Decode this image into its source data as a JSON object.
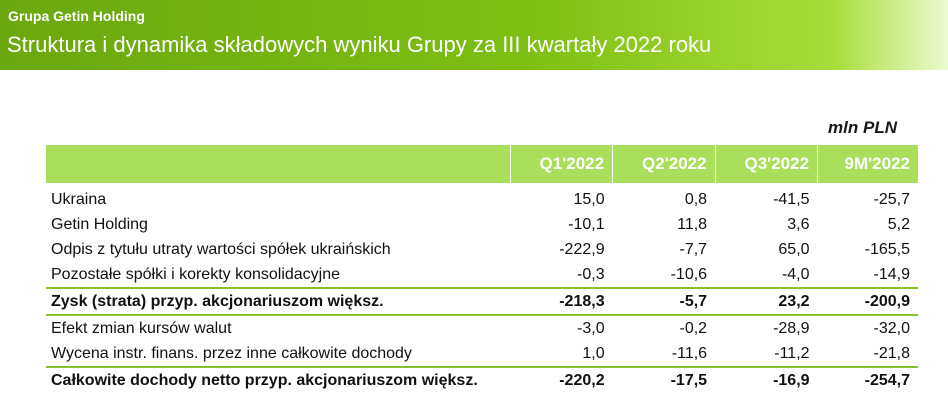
{
  "header": {
    "company": "Grupa Getin Holding",
    "title": "Struktura i dynamika składowych wyniku Grupy za III kwartały 2022 roku"
  },
  "unit": "mln PLN",
  "table": {
    "columns": [
      "Q1'2022",
      "Q2'2022",
      "Q3'2022",
      "9M'2022"
    ],
    "rows": [
      {
        "label": "Ukraina",
        "values": [
          "15,0",
          "0,8",
          "-41,5",
          "-25,7"
        ]
      },
      {
        "label": "Getin Holding",
        "values": [
          "-10,1",
          "11,8",
          "3,6",
          "5,2"
        ]
      },
      {
        "label": "Odpis z tytułu utraty wartości spółek ukraińskich",
        "values": [
          "-222,9",
          "-7,7",
          "65,0",
          "-165,5"
        ]
      },
      {
        "label": "Pozostałe spółki i korekty konsolidacyjne",
        "values": [
          "-0,3",
          "-10,6",
          "-4,0",
          "-14,9"
        ]
      },
      {
        "label": "Zysk (strata) przyp. akcjonariuszom większ.",
        "values": [
          "-218,3",
          "-5,7",
          "23,2",
          "-200,9"
        ]
      },
      {
        "label": "Efekt zmian kursów walut",
        "values": [
          "-3,0",
          "-0,2",
          "-28,9",
          "-32,0"
        ]
      },
      {
        "label": "Wycena instr. finans. przez inne całkowite dochody",
        "values": [
          "1,0",
          "-11,6",
          "-11,2",
          "-21,8"
        ]
      },
      {
        "label": "Całkowite dochody netto przyp. akcjonariuszom większ.",
        "values": [
          "-220,2",
          "-17,5",
          "-16,9",
          "-254,7"
        ]
      }
    ]
  }
}
